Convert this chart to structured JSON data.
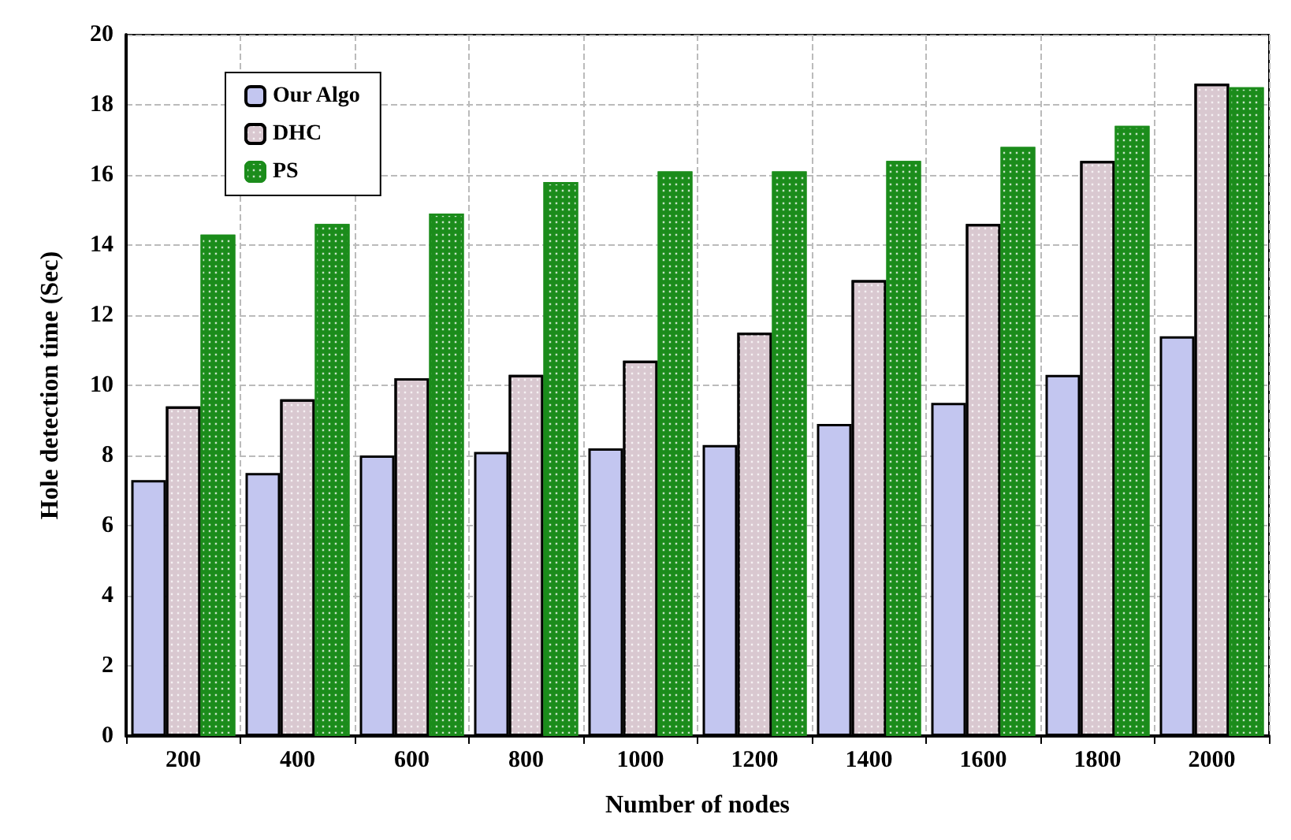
{
  "chart_data": {
    "type": "bar",
    "xlabel": "Number of nodes",
    "ylabel": "Hole detection time (Sec)",
    "categories": [
      "200",
      "400",
      "600",
      "800",
      "1000",
      "1200",
      "1400",
      "1600",
      "1800",
      "2000"
    ],
    "series": [
      {
        "name": "Our Algo",
        "color": "#c3c6f0",
        "values": [
          7.3,
          7.5,
          8.0,
          8.1,
          8.2,
          8.3,
          8.9,
          9.5,
          10.3,
          11.4
        ]
      },
      {
        "name": "DHC",
        "color": "#d9c8d0",
        "values": [
          9.4,
          9.6,
          10.2,
          10.3,
          10.7,
          11.5,
          13.0,
          14.6,
          16.4,
          18.6
        ]
      },
      {
        "name": "PS",
        "color": "#1b8c1b",
        "values": [
          14.3,
          14.6,
          14.9,
          15.8,
          16.1,
          16.1,
          16.4,
          16.8,
          17.4,
          18.5
        ]
      }
    ],
    "ylim": [
      0,
      20
    ],
    "yticks": [
      0,
      2,
      4,
      6,
      8,
      10,
      12,
      14,
      16,
      18,
      20
    ],
    "grid": true,
    "legend": "top left"
  }
}
